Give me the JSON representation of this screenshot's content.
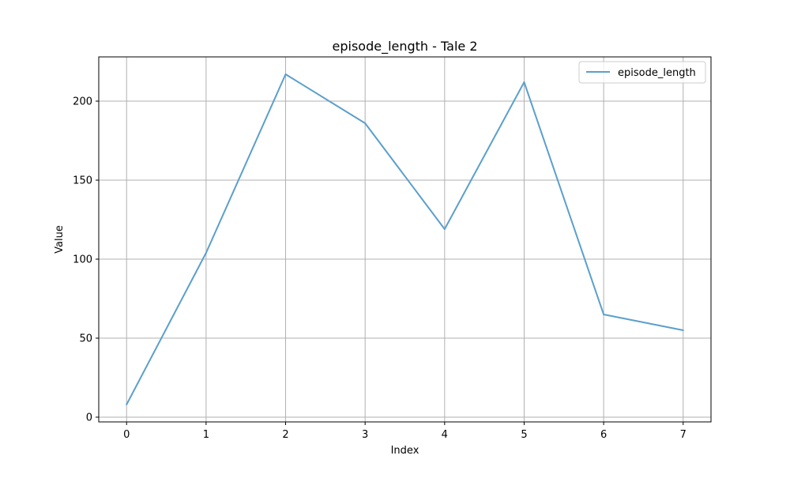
{
  "chart_data": {
    "type": "line",
    "title": "episode_length - Tale 2",
    "xlabel": "Index",
    "ylabel": "Value",
    "x": [
      0,
      1,
      2,
      3,
      4,
      5,
      6,
      7
    ],
    "series": [
      {
        "name": "episode_length",
        "values": [
          8,
          104,
          217,
          186,
          119,
          212,
          65,
          55
        ],
        "color": "#5b9fcc"
      }
    ],
    "xlim": [
      -0.35,
      7.35
    ],
    "ylim": [
      -3,
      228
    ],
    "xticks": [
      0,
      1,
      2,
      3,
      4,
      5,
      6,
      7
    ],
    "yticks": [
      0,
      50,
      100,
      150,
      200
    ],
    "grid": true,
    "legend": "top-right"
  }
}
